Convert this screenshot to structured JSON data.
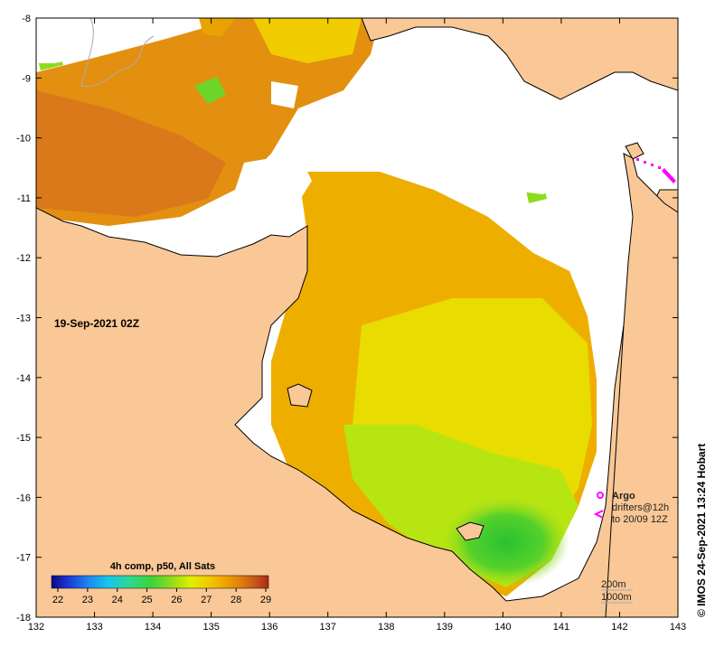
{
  "map": {
    "date_label": "19-Sep-2021 02Z",
    "credit": "© IMOS 24-Sep-2021 13:24 Hobart",
    "lon_ticks": [
      "132",
      "133",
      "134",
      "135",
      "136",
      "137",
      "138",
      "139",
      "140",
      "141",
      "142",
      "143"
    ],
    "lat_ticks": [
      "-8",
      "-9",
      "-10",
      "-11",
      "-12",
      "-13",
      "-14",
      "-15",
      "-16",
      "-17",
      "-18"
    ],
    "colors": {
      "land": "#f9c896",
      "cloud": "#ffffff",
      "coast": "#000000",
      "argo": "#ff00ff",
      "bathy": "#aaaaaa"
    },
    "sst_palette": [
      "#0b0a84",
      "#1b3ad6",
      "#1e88ee",
      "#19c4ee",
      "#2fd890",
      "#3ed23a",
      "#8edb1d",
      "#dff000",
      "#f0cc00",
      "#eea300",
      "#dc7a10",
      "#c4551b",
      "#aa2b16"
    ]
  },
  "legend": {
    "title": "4h comp, p50, All Sats",
    "ticks": [
      "22",
      "23",
      "24",
      "25",
      "26",
      "27",
      "28",
      "29"
    ]
  },
  "argo_legend": {
    "title": "Argo",
    "drifters": "drifters@12h",
    "until": "to 20/09 12Z"
  },
  "bathy_legend": {
    "line1": "200m",
    "line2": "1000m"
  }
}
